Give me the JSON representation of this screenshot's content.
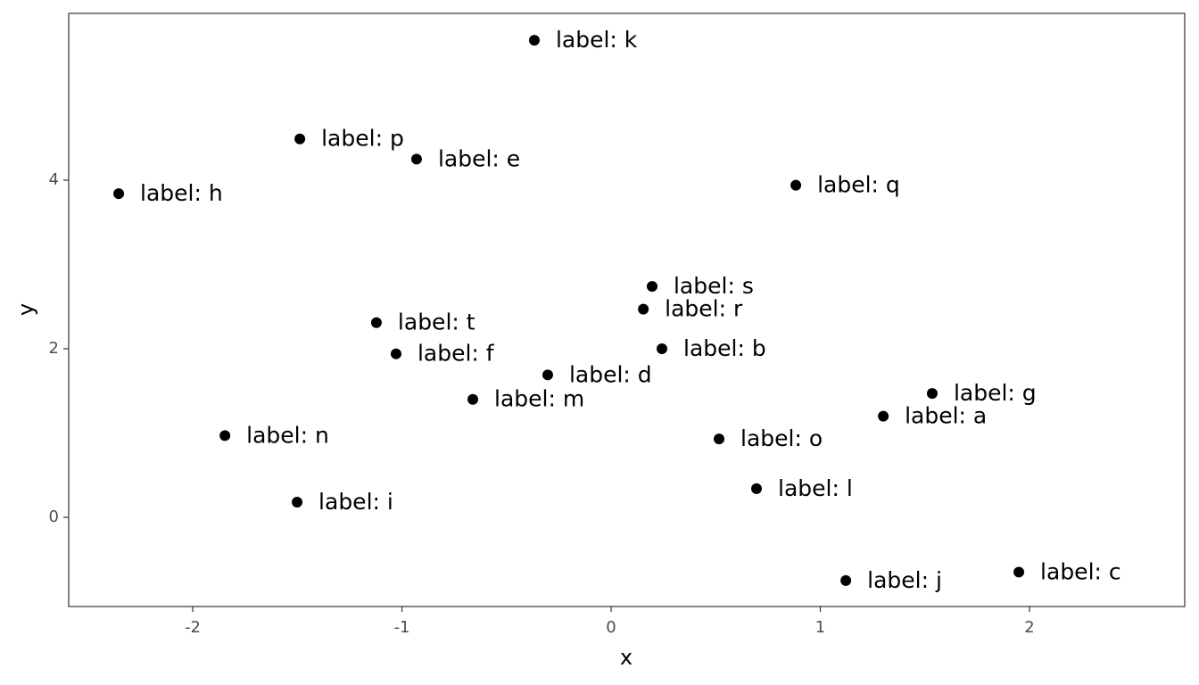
{
  "chart_data": {
    "type": "scatter",
    "x_label": "x",
    "y_label": "y",
    "color": "#000000",
    "labels": [
      "label: a",
      "label: b",
      "label: c",
      "label: d",
      "label: e",
      "label: f",
      "label: g",
      "label: h",
      "label: i",
      "label: j",
      "label: k",
      "label: l",
      "label: m",
      "label: n",
      "label: o",
      "label: p",
      "label: q",
      "label: r",
      "label: s",
      "label: t"
    ],
    "x": [
      1.301,
      0.243,
      1.949,
      -0.303,
      -0.93,
      -1.028,
      1.535,
      -2.354,
      -1.501,
      1.122,
      -0.367,
      0.695,
      -0.661,
      -1.846,
      0.516,
      -1.488,
      0.883,
      0.154,
      0.196,
      -1.122
    ],
    "y": [
      1.2,
      2.0,
      -0.65,
      1.69,
      4.25,
      1.94,
      1.47,
      3.84,
      0.18,
      -0.75,
      5.66,
      0.34,
      1.4,
      0.97,
      0.93,
      4.49,
      3.94,
      2.47,
      2.74,
      2.31
    ],
    "xlim": [
      -2.593,
      2.742
    ],
    "ylim": [
      -1.058,
      5.979
    ],
    "xticks": [
      -2,
      -1,
      0,
      1,
      2
    ],
    "yticks": [
      0,
      2,
      4
    ]
  }
}
